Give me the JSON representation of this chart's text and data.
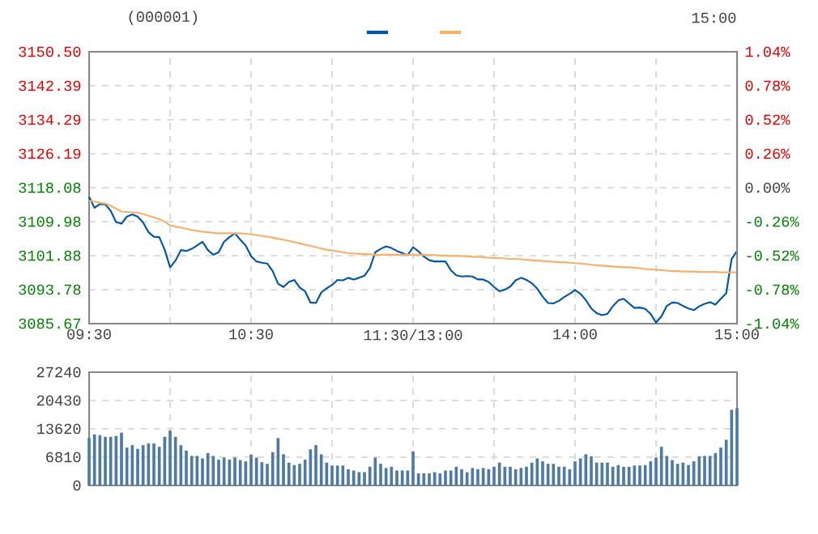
{
  "chart_data": [
    {
      "type": "line",
      "title": "(000001)",
      "annotations": [
        "15:00"
      ],
      "grid": true,
      "categories": [
        "09:30",
        null,
        null,
        null,
        null,
        null,
        null,
        null,
        null,
        null,
        null,
        null,
        null,
        null,
        null,
        null,
        null,
        null,
        null,
        null,
        null,
        null,
        null,
        null,
        null,
        null,
        null,
        null,
        null,
        null,
        "10:30",
        null,
        null,
        null,
        null,
        null,
        null,
        null,
        null,
        null,
        null,
        null,
        null,
        null,
        null,
        null,
        null,
        null,
        null,
        null,
        null,
        null,
        null,
        null,
        null,
        null,
        null,
        null,
        null,
        null,
        "11:30/13:00",
        null,
        null,
        null,
        null,
        null,
        null,
        null,
        null,
        null,
        null,
        null,
        null,
        null,
        null,
        null,
        null,
        null,
        null,
        null,
        null,
        null,
        null,
        null,
        null,
        null,
        null,
        null,
        null,
        null,
        "14:00",
        null,
        null,
        null,
        null,
        null,
        null,
        null,
        null,
        null,
        null,
        null,
        null,
        null,
        null,
        null,
        null,
        null,
        null,
        null,
        null,
        null,
        null,
        null,
        null,
        null,
        null,
        null,
        null,
        null,
        "15:00"
      ],
      "ylim": [
        3085.67,
        3150.5
      ],
      "yticks": [
        {
          "value": 3085.67,
          "label": "3085.67"
        },
        {
          "value": 3093.78,
          "label": "3093.78"
        },
        {
          "value": 3101.88,
          "label": "3101.88"
        },
        {
          "value": 3109.98,
          "label": "3109.98"
        },
        {
          "value": 3118.08,
          "label": "3118.08"
        },
        {
          "value": 3126.19,
          "label": "3126.19"
        },
        {
          "value": 3134.29,
          "label": "3134.29"
        },
        {
          "value": 3142.39,
          "label": "3142.39"
        },
        {
          "value": 3150.5,
          "label": "3150.50"
        }
      ],
      "y2lim": [
        -1.04,
        1.04
      ],
      "y2ticks": [
        {
          "value": -1.04,
          "label": "-1.04%"
        },
        {
          "value": -0.78,
          "label": "-0.78%"
        },
        {
          "value": -0.52,
          "label": "-0.52%"
        },
        {
          "value": -0.26,
          "label": "-0.26%"
        },
        {
          "value": 0,
          "label": "0.00%"
        },
        {
          "value": 0.26,
          "label": "0.26%"
        },
        {
          "value": 0.52,
          "label": "0.52%"
        },
        {
          "value": 0.78,
          "label": "0.78%"
        },
        {
          "value": 1.04,
          "label": "1.04%"
        }
      ],
      "series": [
        {
          "color": "#0055a6",
          "values": [
            3115.9,
            3113.3,
            3114.2,
            3114.1,
            3112.6,
            3109.9,
            3109.5,
            3111.2,
            3111.7,
            3111.2,
            3109.8,
            3107.5,
            3106.4,
            3106.3,
            3103.3,
            3099.1,
            3100.7,
            3103.2,
            3103.0,
            3103.5,
            3104.3,
            3105.2,
            3103.2,
            3102.1,
            3102.7,
            3105.2,
            3106.3,
            3107.2,
            3105.7,
            3104.3,
            3101.8,
            3100.5,
            3100.2,
            3100.0,
            3098.2,
            3095.2,
            3094.4,
            3095.6,
            3096.1,
            3094.3,
            3093.4,
            3090.7,
            3090.6,
            3093.1,
            3094.1,
            3094.9,
            3096.1,
            3096.0,
            3096.6,
            3096.2,
            3096.6,
            3097.1,
            3098.9,
            3102.7,
            3103.5,
            3104.1,
            3103.7,
            3103.0,
            3102.5,
            3102.0,
            3103.9,
            3102.9,
            3101.7,
            3100.8,
            3100.5,
            3100.5,
            3100.5,
            3098.4,
            3097.2,
            3096.9,
            3097.0,
            3096.9,
            3096.2,
            3096.2,
            3095.6,
            3094.4,
            3093.4,
            3093.8,
            3094.5,
            3096.0,
            3096.6,
            3096.1,
            3095.3,
            3094.0,
            3092.1,
            3090.6,
            3090.5,
            3091.1,
            3092.0,
            3092.8,
            3093.7,
            3092.8,
            3091.3,
            3089.3,
            3088.2,
            3087.7,
            3088.0,
            3089.8,
            3091.2,
            3091.6,
            3090.5,
            3089.4,
            3089.5,
            3089.2,
            3088.0,
            3085.9,
            3087.4,
            3089.9,
            3090.7,
            3090.6,
            3089.9,
            3089.3,
            3088.9,
            3089.8,
            3090.4,
            3090.8,
            3090.2,
            3091.6,
            3092.9,
            3101.1,
            3103.0
          ]
        },
        {
          "color": "#f5b06b",
          "values": [
            3115.0,
            3114.8,
            3114.5,
            3114.3,
            3113.8,
            3113.1,
            3112.4,
            3112.3,
            3112.2,
            3112.1,
            3111.8,
            3111.4,
            3111.0,
            3110.6,
            3110.0,
            3109.1,
            3108.8,
            3108.6,
            3108.3,
            3108.0,
            3107.8,
            3107.6,
            3107.5,
            3107.3,
            3107.2,
            3107.2,
            3107.2,
            3107.2,
            3107.2,
            3107.1,
            3107.0,
            3106.8,
            3106.6,
            3106.4,
            3106.2,
            3105.9,
            3105.7,
            3105.4,
            3105.1,
            3104.8,
            3104.5,
            3104.2,
            3103.9,
            3103.6,
            3103.3,
            3103.1,
            3102.9,
            3102.7,
            3102.5,
            3102.4,
            3102.3,
            3102.3,
            3102.2,
            3102.1,
            3102.1,
            3102.1,
            3102.1,
            3102.1,
            3102.1,
            3102.1,
            3102.1,
            3102.1,
            3102.1,
            3102.0,
            3102.0,
            3101.9,
            3101.9,
            3101.8,
            3101.8,
            3101.8,
            3101.7,
            3101.6,
            3101.6,
            3101.5,
            3101.4,
            3101.3,
            3101.3,
            3101.2,
            3101.1,
            3101.1,
            3101.0,
            3100.9,
            3100.8,
            3100.7,
            3100.6,
            3100.5,
            3100.4,
            3100.3,
            3100.3,
            3100.2,
            3100.1,
            3100.0,
            3099.9,
            3099.7,
            3099.6,
            3099.5,
            3099.4,
            3099.3,
            3099.2,
            3099.1,
            3099.1,
            3099.0,
            3098.9,
            3098.7,
            3098.6,
            3098.5,
            3098.4,
            3098.3,
            3098.2,
            3098.2,
            3098.1,
            3098.1,
            3098.1,
            3098.0,
            3098.0,
            3098.0,
            3098.0,
            3097.9,
            3097.9,
            3097.9,
            3097.9
          ]
        }
      ]
    },
    {
      "type": "bar",
      "grid": true,
      "tick_labels": "y",
      "color": "#4e7aa3",
      "categories": [
        null,
        null,
        null,
        null,
        null,
        null,
        null,
        null,
        null,
        null,
        null,
        null,
        null,
        null,
        null,
        null,
        null,
        null,
        null,
        null,
        null,
        null,
        null,
        null,
        null,
        null,
        null,
        null,
        null,
        null,
        null,
        null,
        null,
        null,
        null,
        null,
        null,
        null,
        null,
        null,
        null,
        null,
        null,
        null,
        null,
        null,
        null,
        null,
        null,
        null,
        null,
        null,
        null,
        null,
        null,
        null,
        null,
        null,
        null,
        null,
        null,
        null,
        null,
        null,
        null,
        null,
        null,
        null,
        null,
        null,
        null,
        null,
        null,
        null,
        null,
        null,
        null,
        null,
        null,
        null,
        null,
        null,
        null,
        null,
        null,
        null,
        null,
        null,
        null,
        null,
        null,
        null,
        null,
        null,
        null,
        null,
        null,
        null,
        null,
        null,
        null,
        null,
        null,
        null,
        null,
        null,
        null,
        null,
        null,
        null,
        null,
        null,
        null,
        null,
        null,
        null,
        null,
        null,
        null,
        null,
        null
      ],
      "ylim": [
        0,
        27240
      ],
      "yticks": [
        0,
        6810,
        13620,
        20430,
        27240
      ],
      "values": [
        11400,
        12300,
        12100,
        11700,
        11700,
        11900,
        12700,
        9100,
        9700,
        8800,
        9700,
        10100,
        10100,
        9300,
        11700,
        13200,
        11700,
        9700,
        8400,
        7100,
        7100,
        6500,
        7800,
        7100,
        6200,
        6700,
        6200,
        6700,
        6100,
        5800,
        7400,
        6700,
        5600,
        5200,
        8000,
        11400,
        7500,
        5500,
        4900,
        5200,
        6200,
        8700,
        9700,
        7500,
        5500,
        4800,
        4800,
        4800,
        3900,
        3600,
        3200,
        3200,
        4500,
        6700,
        5200,
        4200,
        4500,
        3600,
        3600,
        3600,
        8200,
        2900,
        2900,
        2900,
        3200,
        2900,
        3600,
        3600,
        4500,
        3900,
        3200,
        4200,
        3900,
        4200,
        3900,
        4500,
        5500,
        4500,
        4500,
        3900,
        4200,
        4500,
        5500,
        6500,
        5800,
        5200,
        5200,
        4500,
        4500,
        3900,
        5800,
        6500,
        7500,
        7000,
        5500,
        5500,
        5500,
        4500,
        4900,
        4500,
        4500,
        4800,
        4800,
        4900,
        5800,
        6700,
        9300,
        7100,
        6100,
        5200,
        5500,
        4900,
        5800,
        7000,
        7100,
        7100,
        7800,
        9100,
        11000,
        18200,
        18600
      ]
    }
  ]
}
